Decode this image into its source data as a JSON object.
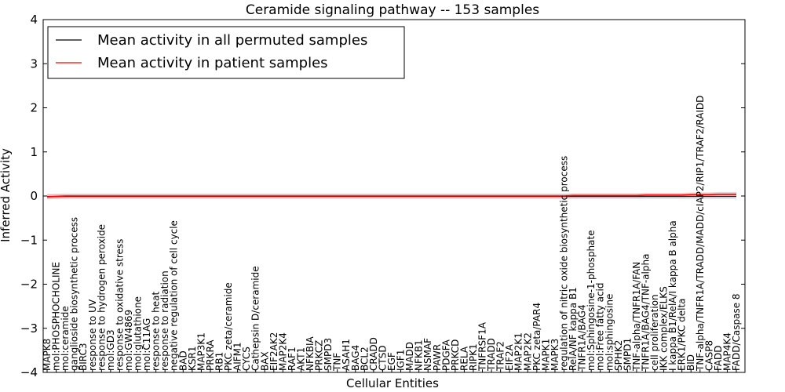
{
  "chart_data": {
    "type": "line",
    "title": "Ceramide signaling pathway -- 153 samples",
    "xlabel": "Cellular Entities",
    "ylabel": "Inferred Activity",
    "ylim": [
      -4,
      4
    ],
    "yticks": [
      -4,
      -3,
      -2,
      -1,
      0,
      1,
      2,
      3,
      4
    ],
    "ytick_labels": [
      "−4",
      "−3",
      "−2",
      "−1",
      "0",
      "1",
      "2",
      "3",
      "4"
    ],
    "legend_position": "top-left",
    "categories": [
      "MAPK8",
      "mol:PHOSPHOCHOLINE",
      "mol:ceramide",
      "ganglioside biosynthetic process",
      "BIRC3",
      "response to UV",
      "response to hydrogen peroxide",
      "mol:GD3",
      "response to oxidative stress",
      "mol:GW4869",
      "mol:glutathione",
      "mol:C11AG",
      "response to heat",
      "response to radiation",
      "negative regulation of cell cycle",
      "BAD",
      "KSR1",
      "MAP3K1",
      "PRKRA",
      "RB1",
      "PKC zeta/ceramide",
      "AIFM1",
      "CYCS",
      "Cathepsin D/ceramide",
      "BAX",
      "EIF2AK2",
      "MAP2K4",
      "RAF1",
      "AKT1",
      "NFKBIA",
      "PRKCZ",
      "SMPD3",
      "TNF",
      "ASAH1",
      "BAG4",
      "BCL2",
      "CRADD",
      "CTSD",
      "EGF",
      "IGF1",
      "MADD",
      "NFKB1",
      "NSMAF",
      "PAWR",
      "PDGFA",
      "PRKCD",
      "RELA",
      "RIPK1",
      "TNFRSF1A",
      "TRADD",
      "TRAF2",
      "EIF2A",
      "MAP2K1",
      "MAP2K2",
      "PKC zeta/PAR4",
      "MAPK1",
      "MAPK3",
      "regulation of nitric oxide biosynthetic process",
      "RelA/NF kappa B1",
      "TNFR1A/BAG4",
      "mol:Sphingosine-1-phosphate",
      "mol:Free fatty acid",
      "mol:sphingosine",
      "SPHK2",
      "SMPD1",
      "TNF-alpha/TNFR1A/FAN",
      "TNFR1A/BAG4/TNF-alpha",
      "cell proliferation",
      "IKK complex/ELKS",
      "I kappa B1/RelA/I kappa B alpha",
      "ERK1/PKC delta",
      "BID",
      "TNF-alpha/TNFR1A/TRADD/MADD/cIAP2/RIP1/TRAF2/RAIDD",
      "CASP8",
      "FADD",
      "MAP4K4",
      "FADD/Caspase 8"
    ],
    "series": [
      {
        "name": "Mean activity in all permuted samples",
        "color": "#000000",
        "values": [
          -0.01,
          -0.01,
          -0.01,
          -0.01,
          -0.01,
          -0.01,
          -0.01,
          -0.01,
          -0.01,
          -0.01,
          -0.01,
          -0.01,
          -0.01,
          -0.01,
          -0.01,
          -0.01,
          -0.01,
          -0.01,
          -0.01,
          -0.01,
          -0.01,
          -0.01,
          -0.01,
          -0.01,
          -0.01,
          -0.01,
          -0.01,
          -0.01,
          -0.01,
          -0.01,
          -0.01,
          -0.01,
          -0.01,
          -0.01,
          -0.01,
          -0.01,
          -0.01,
          -0.01,
          -0.01,
          -0.01,
          -0.01,
          -0.01,
          -0.01,
          -0.01,
          -0.01,
          -0.01,
          -0.01,
          -0.01,
          -0.01,
          -0.01,
          -0.01,
          -0.01,
          -0.01,
          -0.01,
          -0.01,
          -0.01,
          -0.01,
          -0.01,
          -0.01,
          -0.01,
          -0.01,
          -0.01,
          -0.01,
          -0.01,
          -0.01,
          -0.01,
          -0.01,
          -0.01,
          -0.01,
          -0.01,
          -0.01,
          -0.01,
          -0.01,
          -0.01,
          -0.01,
          -0.01,
          -0.01
        ]
      },
      {
        "name": "Mean activity in patient samples",
        "color": "#ff0000",
        "values": [
          -0.02,
          -0.01,
          0.0,
          0.0,
          0.0,
          0.0,
          0.0,
          0.0,
          0.0,
          0.0,
          0.0,
          0.0,
          0.0,
          0.0,
          0.0,
          0.0,
          0.0,
          0.0,
          0.0,
          0.0,
          0.0,
          0.0,
          0.0,
          0.0,
          0.0,
          0.0,
          0.0,
          0.0,
          0.0,
          0.0,
          0.0,
          0.0,
          0.0,
          0.0,
          0.0,
          0.0,
          0.0,
          0.0,
          0.0,
          0.0,
          0.0,
          0.0,
          0.0,
          0.0,
          0.0,
          0.0,
          0.0,
          0.0,
          0.0,
          0.0,
          0.0,
          0.0,
          0.0,
          0.0,
          0.0,
          0.0,
          0.0,
          0.0,
          0.01,
          0.01,
          0.01,
          0.01,
          0.01,
          0.01,
          0.01,
          0.01,
          0.02,
          0.02,
          0.02,
          0.02,
          0.02,
          0.03,
          0.03,
          0.03,
          0.04,
          0.04,
          0.04
        ]
      }
    ]
  }
}
